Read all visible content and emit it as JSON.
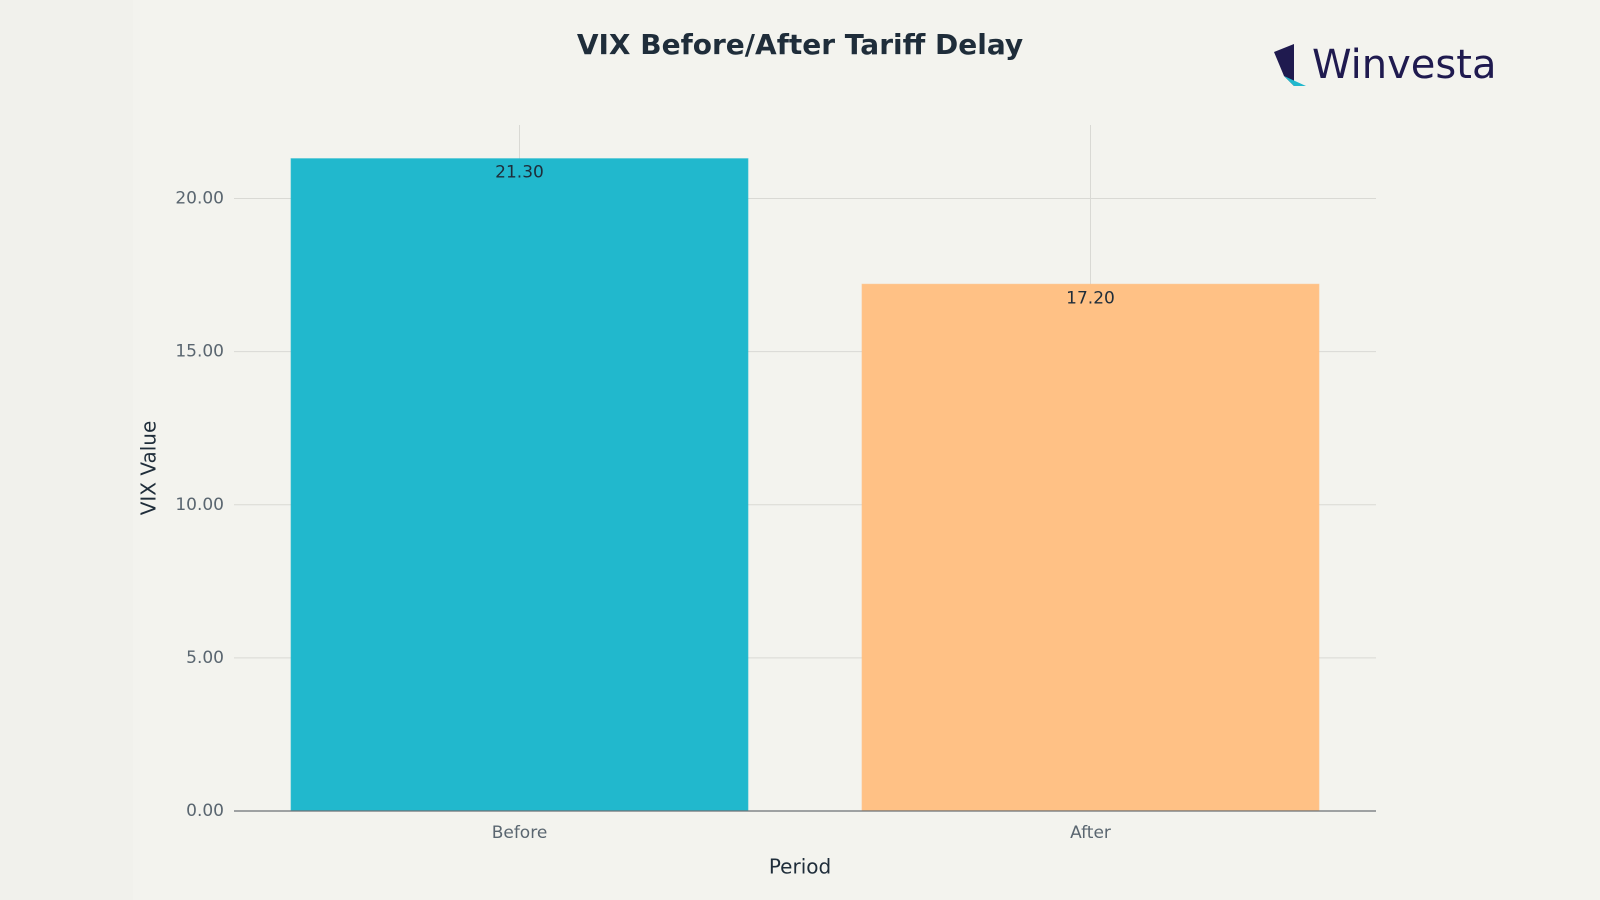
{
  "chart_data": {
    "type": "bar",
    "title": "VIX Before/After Tariff Delay",
    "logo": "Winvesta",
    "x_label": "Period",
    "y_label": "VIX Value",
    "categories": [
      "Before",
      "After"
    ],
    "values": [
      21.3,
      17.2
    ],
    "value_labels": [
      "21.30",
      "17.20"
    ],
    "colors": [
      "#21b8cd",
      "#ffc185"
    ],
    "ylim": [
      0,
      22.4
    ],
    "yticks": [
      {
        "value": 0,
        "label": "0.00"
      },
      {
        "value": 5,
        "label": "5.00"
      },
      {
        "value": 10,
        "label": "10.00"
      },
      {
        "value": 15,
        "label": "15.00"
      },
      {
        "value": 20,
        "label": "20.00"
      }
    ],
    "grid": true
  }
}
